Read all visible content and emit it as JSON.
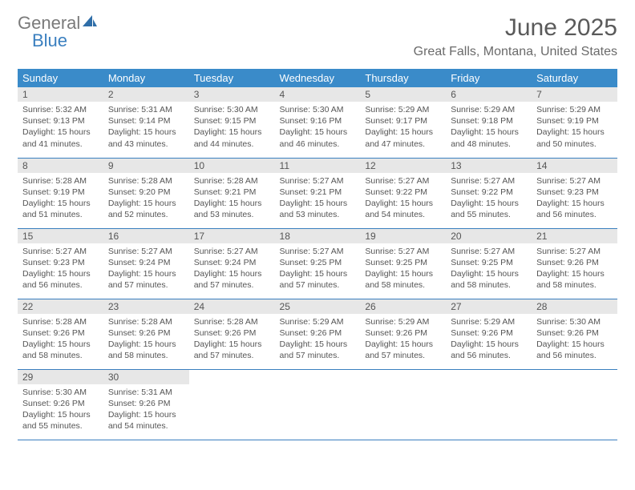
{
  "brand": {
    "part1": "General",
    "part2": "Blue"
  },
  "title": "June 2025",
  "location": "Great Falls, Montana, United States",
  "colors": {
    "header_bg": "#3a8bc9",
    "header_fg": "#ffffff",
    "daynum_bg": "#e7e7e7",
    "rule": "#3a7fbf",
    "text": "#555555",
    "brand_gray": "#7a7a7a",
    "brand_blue": "#3a7fbf"
  },
  "day_labels": [
    "Sunday",
    "Monday",
    "Tuesday",
    "Wednesday",
    "Thursday",
    "Friday",
    "Saturday"
  ],
  "weeks": [
    [
      {
        "n": "1",
        "sunrise": "5:32 AM",
        "sunset": "9:13 PM",
        "daylight": "15 hours and 41 minutes."
      },
      {
        "n": "2",
        "sunrise": "5:31 AM",
        "sunset": "9:14 PM",
        "daylight": "15 hours and 43 minutes."
      },
      {
        "n": "3",
        "sunrise": "5:30 AM",
        "sunset": "9:15 PM",
        "daylight": "15 hours and 44 minutes."
      },
      {
        "n": "4",
        "sunrise": "5:30 AM",
        "sunset": "9:16 PM",
        "daylight": "15 hours and 46 minutes."
      },
      {
        "n": "5",
        "sunrise": "5:29 AM",
        "sunset": "9:17 PM",
        "daylight": "15 hours and 47 minutes."
      },
      {
        "n": "6",
        "sunrise": "5:29 AM",
        "sunset": "9:18 PM",
        "daylight": "15 hours and 48 minutes."
      },
      {
        "n": "7",
        "sunrise": "5:29 AM",
        "sunset": "9:19 PM",
        "daylight": "15 hours and 50 minutes."
      }
    ],
    [
      {
        "n": "8",
        "sunrise": "5:28 AM",
        "sunset": "9:19 PM",
        "daylight": "15 hours and 51 minutes."
      },
      {
        "n": "9",
        "sunrise": "5:28 AM",
        "sunset": "9:20 PM",
        "daylight": "15 hours and 52 minutes."
      },
      {
        "n": "10",
        "sunrise": "5:28 AM",
        "sunset": "9:21 PM",
        "daylight": "15 hours and 53 minutes."
      },
      {
        "n": "11",
        "sunrise": "5:27 AM",
        "sunset": "9:21 PM",
        "daylight": "15 hours and 53 minutes."
      },
      {
        "n": "12",
        "sunrise": "5:27 AM",
        "sunset": "9:22 PM",
        "daylight": "15 hours and 54 minutes."
      },
      {
        "n": "13",
        "sunrise": "5:27 AM",
        "sunset": "9:22 PM",
        "daylight": "15 hours and 55 minutes."
      },
      {
        "n": "14",
        "sunrise": "5:27 AM",
        "sunset": "9:23 PM",
        "daylight": "15 hours and 56 minutes."
      }
    ],
    [
      {
        "n": "15",
        "sunrise": "5:27 AM",
        "sunset": "9:23 PM",
        "daylight": "15 hours and 56 minutes."
      },
      {
        "n": "16",
        "sunrise": "5:27 AM",
        "sunset": "9:24 PM",
        "daylight": "15 hours and 57 minutes."
      },
      {
        "n": "17",
        "sunrise": "5:27 AM",
        "sunset": "9:24 PM",
        "daylight": "15 hours and 57 minutes."
      },
      {
        "n": "18",
        "sunrise": "5:27 AM",
        "sunset": "9:25 PM",
        "daylight": "15 hours and 57 minutes."
      },
      {
        "n": "19",
        "sunrise": "5:27 AM",
        "sunset": "9:25 PM",
        "daylight": "15 hours and 58 minutes."
      },
      {
        "n": "20",
        "sunrise": "5:27 AM",
        "sunset": "9:25 PM",
        "daylight": "15 hours and 58 minutes."
      },
      {
        "n": "21",
        "sunrise": "5:27 AM",
        "sunset": "9:26 PM",
        "daylight": "15 hours and 58 minutes."
      }
    ],
    [
      {
        "n": "22",
        "sunrise": "5:28 AM",
        "sunset": "9:26 PM",
        "daylight": "15 hours and 58 minutes."
      },
      {
        "n": "23",
        "sunrise": "5:28 AM",
        "sunset": "9:26 PM",
        "daylight": "15 hours and 58 minutes."
      },
      {
        "n": "24",
        "sunrise": "5:28 AM",
        "sunset": "9:26 PM",
        "daylight": "15 hours and 57 minutes."
      },
      {
        "n": "25",
        "sunrise": "5:29 AM",
        "sunset": "9:26 PM",
        "daylight": "15 hours and 57 minutes."
      },
      {
        "n": "26",
        "sunrise": "5:29 AM",
        "sunset": "9:26 PM",
        "daylight": "15 hours and 57 minutes."
      },
      {
        "n": "27",
        "sunrise": "5:29 AM",
        "sunset": "9:26 PM",
        "daylight": "15 hours and 56 minutes."
      },
      {
        "n": "28",
        "sunrise": "5:30 AM",
        "sunset": "9:26 PM",
        "daylight": "15 hours and 56 minutes."
      }
    ],
    [
      {
        "n": "29",
        "sunrise": "5:30 AM",
        "sunset": "9:26 PM",
        "daylight": "15 hours and 55 minutes."
      },
      {
        "n": "30",
        "sunrise": "5:31 AM",
        "sunset": "9:26 PM",
        "daylight": "15 hours and 54 minutes."
      },
      null,
      null,
      null,
      null,
      null
    ]
  ],
  "labels": {
    "sunrise": "Sunrise:",
    "sunset": "Sunset:",
    "daylight": "Daylight:"
  }
}
